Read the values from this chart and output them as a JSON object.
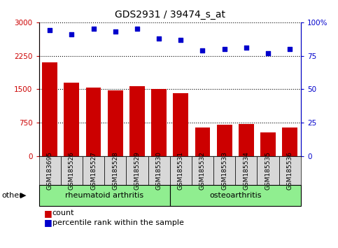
{
  "title": "GDS2931 / 39474_s_at",
  "samples": [
    "GSM183695",
    "GSM185526",
    "GSM185527",
    "GSM185528",
    "GSM185529",
    "GSM185530",
    "GSM185531",
    "GSM185532",
    "GSM185533",
    "GSM185534",
    "GSM185535",
    "GSM185536"
  ],
  "counts": [
    2100,
    1650,
    1540,
    1470,
    1570,
    1510,
    1420,
    640,
    710,
    720,
    540,
    650
  ],
  "percentiles": [
    94,
    91,
    95,
    93,
    95,
    88,
    87,
    79,
    80,
    81,
    77,
    80
  ],
  "bar_color": "#CC0000",
  "scatter_color": "#0000CC",
  "ylim_left": [
    0,
    3000
  ],
  "ylim_right": [
    0,
    100
  ],
  "yticks_left": [
    0,
    750,
    1500,
    2250,
    3000
  ],
  "yticks_right": [
    0,
    25,
    50,
    75,
    100
  ],
  "ytick_labels_left": [
    "0",
    "750",
    "1500",
    "2250",
    "3000"
  ],
  "ytick_labels_right": [
    "0",
    "25",
    "50",
    "75",
    "100%"
  ],
  "green_light": "#90EE90",
  "green_dark": "#44CC44",
  "tick_bg": "#D8D8D8",
  "legend_count_label": "count",
  "legend_pct_label": "percentile rank within the sample",
  "other_label": "other",
  "group1_label": "rheumatoid arthritis",
  "group2_label": "osteoarthritis",
  "group1_count": 6,
  "group2_count": 6
}
